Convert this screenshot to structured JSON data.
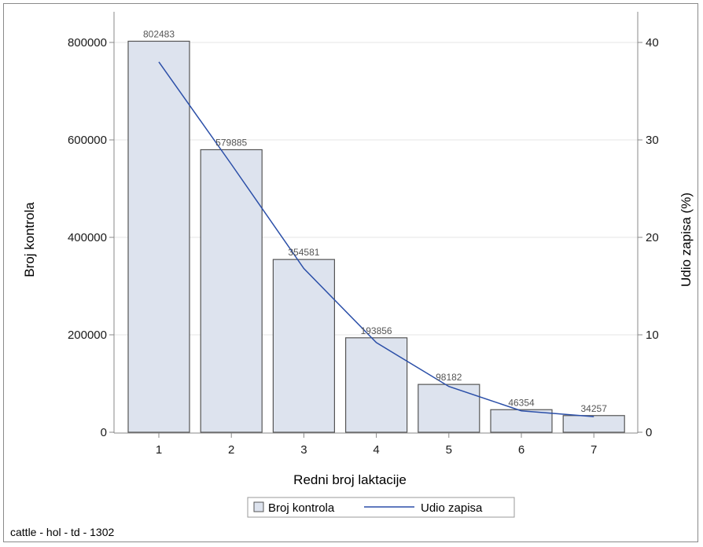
{
  "chart_data": {
    "type": "bar",
    "categories": [
      "1",
      "2",
      "3",
      "4",
      "5",
      "6",
      "7"
    ],
    "series": [
      {
        "name": "Broj kontrola",
        "type": "bar",
        "axis": "left",
        "values": [
          802483,
          579885,
          354581,
          193856,
          98182,
          46354,
          34257
        ],
        "labels": [
          "802483",
          "579885",
          "354581",
          "193856",
          "98182",
          "46354",
          "34257"
        ]
      },
      {
        "name": "Udio zapisa",
        "type": "line",
        "axis": "right",
        "values": [
          38.0,
          27.5,
          16.8,
          9.2,
          4.7,
          2.2,
          1.6
        ]
      }
    ],
    "xlabel": "Redni broj laktacije",
    "ylabel": "Broj kontrola",
    "y2label": "Udio zapisa (%)",
    "ylim": [
      0,
      800000
    ],
    "y2lim": [
      0,
      40
    ],
    "yticks": [
      "0",
      "200000",
      "400000",
      "600000",
      "800000"
    ],
    "y2ticks": [
      "0",
      "10",
      "20",
      "30",
      "40"
    ],
    "grid": true,
    "legend": "bottom",
    "footnote": "cattle - hol - td - 1302",
    "colors": {
      "bar_fill": "#dde3ee",
      "bar_stroke": "#555555",
      "line": "#2b4fa8",
      "grid": "#e6e6e6",
      "axis": "#888888"
    }
  }
}
